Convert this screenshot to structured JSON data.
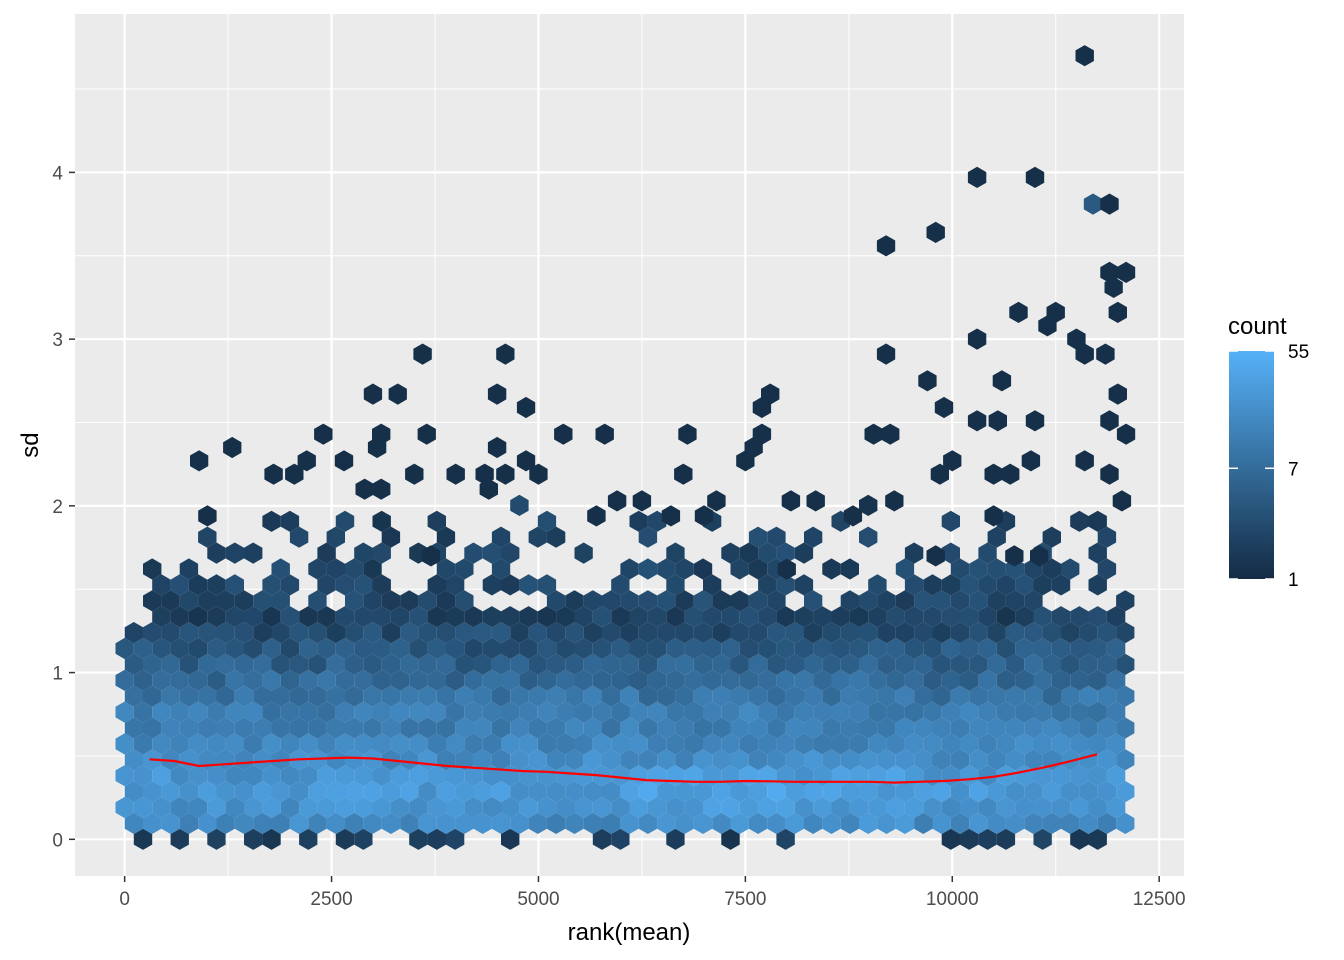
{
  "chart_data": {
    "type": "hexbin",
    "xlabel": "rank(mean)",
    "ylabel": "sd",
    "xlim": [
      -600,
      12800
    ],
    "ylim": [
      -0.22,
      4.95
    ],
    "x_ticks": [
      0,
      2500,
      5000,
      7500,
      10000,
      12500
    ],
    "x_tick_labels": [
      "0",
      "2500",
      "5000",
      "7500",
      "10000",
      "12500"
    ],
    "y_ticks": [
      0,
      1,
      2,
      3,
      4
    ],
    "y_tick_labels": [
      "0",
      "1",
      "2",
      "3",
      "4"
    ],
    "grid": true,
    "legend": {
      "title": "count",
      "scale": "log",
      "range": [
        1,
        55
      ],
      "breaks": [
        1,
        7,
        55
      ],
      "break_labels": [
        "1",
        "7",
        "55"
      ],
      "low_color": "#132B43",
      "high_color": "#56B1F7",
      "position": "right"
    },
    "smooth_line": {
      "color": "#ff0000",
      "x": [
        300,
        600,
        900,
        1200,
        1500,
        1800,
        2100,
        2400,
        2700,
        3000,
        3300,
        3600,
        3900,
        4200,
        4500,
        4800,
        5100,
        5400,
        5700,
        6000,
        6300,
        6600,
        6900,
        7200,
        7500,
        7800,
        8100,
        8400,
        8700,
        9000,
        9300,
        9600,
        9900,
        10200,
        10500,
        10800,
        11100,
        11400,
        11750
      ],
      "y": [
        0.48,
        0.47,
        0.44,
        0.45,
        0.46,
        0.47,
        0.48,
        0.485,
        0.49,
        0.485,
        0.47,
        0.455,
        0.44,
        0.43,
        0.42,
        0.41,
        0.405,
        0.395,
        0.385,
        0.37,
        0.355,
        0.35,
        0.345,
        0.345,
        0.35,
        0.348,
        0.345,
        0.345,
        0.345,
        0.345,
        0.34,
        0.345,
        0.35,
        0.36,
        0.375,
        0.4,
        0.43,
        0.465,
        0.51
      ]
    },
    "outlier_points": [
      [
        11600,
        4.7
      ],
      [
        11700,
        3.81
      ],
      [
        11900,
        3.81
      ],
      [
        10300,
        3.97
      ],
      [
        11000,
        3.97
      ],
      [
        9800,
        3.64
      ],
      [
        9200,
        3.56
      ],
      [
        11900,
        3.4
      ],
      [
        12100,
        3.4
      ],
      [
        11950,
        3.31
      ],
      [
        12000,
        3.16
      ],
      [
        11250,
        3.16
      ],
      [
        10800,
        3.16
      ],
      [
        11150,
        3.08
      ],
      [
        11500,
        3.0
      ],
      [
        10300,
        3.0
      ],
      [
        3600,
        2.91
      ],
      [
        4600,
        2.91
      ],
      [
        9200,
        2.91
      ],
      [
        11600,
        2.91
      ],
      [
        11850,
        2.91
      ],
      [
        9700,
        2.75
      ],
      [
        10600,
        2.75
      ],
      [
        3000,
        2.67
      ],
      [
        3300,
        2.67
      ],
      [
        4500,
        2.67
      ],
      [
        7800,
        2.67
      ],
      [
        12000,
        2.67
      ],
      [
        7700,
        2.59
      ],
      [
        9900,
        2.59
      ],
      [
        4850,
        2.59
      ],
      [
        10300,
        2.51
      ],
      [
        10550,
        2.51
      ],
      [
        11000,
        2.51
      ],
      [
        11900,
        2.51
      ],
      [
        900,
        2.27
      ],
      [
        1300,
        2.35
      ],
      [
        2400,
        2.43
      ],
      [
        3100,
        2.43
      ],
      [
        3650,
        2.43
      ],
      [
        5300,
        2.43
      ],
      [
        5800,
        2.43
      ],
      [
        6800,
        2.43
      ],
      [
        7700,
        2.43
      ],
      [
        9050,
        2.43
      ],
      [
        9250,
        2.43
      ],
      [
        12100,
        2.43
      ],
      [
        4500,
        2.35
      ],
      [
        3050,
        2.35
      ],
      [
        7600,
        2.35
      ],
      [
        2200,
        2.27
      ],
      [
        2650,
        2.27
      ],
      [
        4850,
        2.27
      ],
      [
        7500,
        2.27
      ],
      [
        10000,
        2.27
      ],
      [
        10950,
        2.27
      ],
      [
        11600,
        2.27
      ],
      [
        1800,
        2.19
      ],
      [
        2050,
        2.19
      ],
      [
        3500,
        2.19
      ],
      [
        4000,
        2.19
      ],
      [
        4350,
        2.19
      ],
      [
        4600,
        2.19
      ],
      [
        5000,
        2.19
      ],
      [
        6750,
        2.19
      ],
      [
        9850,
        2.19
      ],
      [
        10700,
        2.19
      ],
      [
        11900,
        2.19
      ],
      [
        10500,
        2.19
      ],
      [
        9300,
        2.03
      ],
      [
        2900,
        2.1
      ],
      [
        3100,
        2.1
      ],
      [
        4400,
        2.1
      ],
      [
        5950,
        2.03
      ],
      [
        6250,
        2.03
      ],
      [
        7150,
        2.03
      ],
      [
        8050,
        2.03
      ],
      [
        8350,
        2.03
      ],
      [
        12050,
        2.03
      ],
      [
        1000,
        1.94
      ],
      [
        5700,
        1.94
      ],
      [
        6600,
        1.94
      ],
      [
        7000,
        1.94
      ],
      [
        8800,
        1.94
      ],
      [
        10500,
        1.94
      ],
      [
        9800,
        1.7
      ],
      [
        10750,
        1.7
      ],
      [
        11050,
        1.7
      ],
      [
        3700,
        1.7
      ],
      [
        8000,
        1.62
      ]
    ]
  }
}
